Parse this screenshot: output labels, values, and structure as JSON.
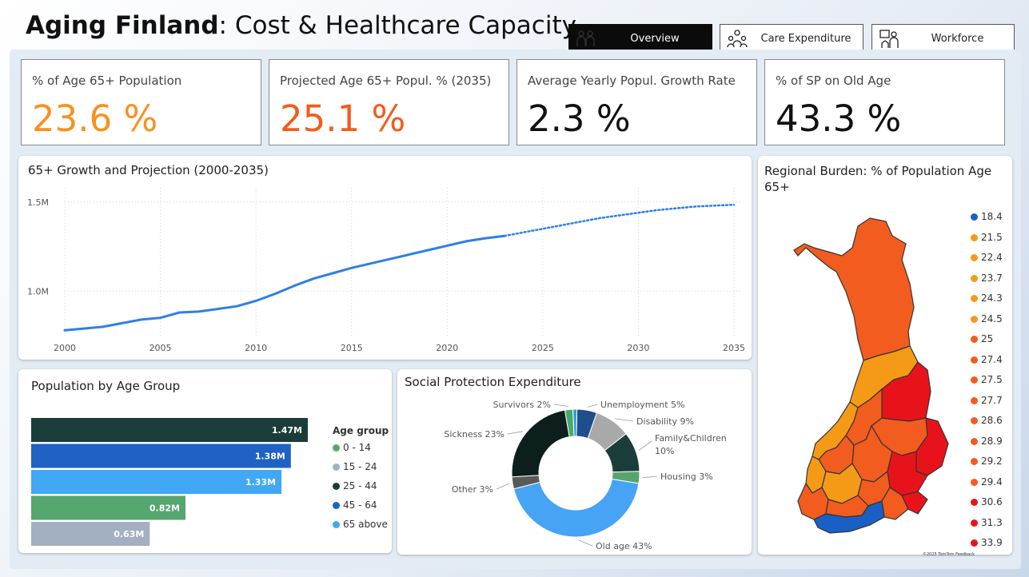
{
  "header": {
    "title_bold": "Aging Finland",
    "title_rest": ": Cost & Healthcare Capacity"
  },
  "tabs": [
    {
      "label": "Overview",
      "icon": "people-icon",
      "active": true
    },
    {
      "label": "Care Expenditure",
      "icon": "care-group-icon",
      "active": false
    },
    {
      "label": "Workforce",
      "icon": "caregiver-icon",
      "active": false
    }
  ],
  "kpis": [
    {
      "label": "% of Age 65+ Population",
      "value": "23.6 %",
      "color": "#f7921e"
    },
    {
      "label": "Projected Age 65+ Popul. % (2035)",
      "value": "25.1 %",
      "color": "#f25c1e"
    },
    {
      "label": "Average Yearly Popul. Growth Rate",
      "value": "2.3 %",
      "color": "#111111"
    },
    {
      "label": "% of SP on Old Age",
      "value": "43.3 %",
      "color": "#111111"
    }
  ],
  "line_panel": {
    "title": "65+ Growth and Projection (2000-2035)"
  },
  "bar_panel": {
    "title": "Population by Age Group",
    "legend_title": "Age group"
  },
  "donut_panel": {
    "title": "Social Protection Expenditure"
  },
  "map_panel": {
    "title": "Regional Burden: % of Population Age 65+",
    "credit": "©2025 TomTom Feedback"
  },
  "chart_data": [
    {
      "type": "line",
      "title": "65+ Growth and Projection (2000-2035)",
      "xlim": [
        2000,
        2035
      ],
      "ylim": [
        0.75,
        1.58
      ],
      "x_ticks": [
        "2000",
        "2005",
        "2010",
        "2015",
        "2020",
        "2025",
        "2030",
        "2035"
      ],
      "y_ticks": [
        {
          "v": 1.0,
          "label": "1.0M"
        },
        {
          "v": 1.5,
          "label": "1.5M"
        }
      ],
      "color": "#2f7fe6",
      "series": [
        {
          "style": "actual",
          "points": [
            [
              2000,
              0.78
            ],
            [
              2001,
              0.79
            ],
            [
              2002,
              0.8
            ],
            [
              2003,
              0.82
            ],
            [
              2004,
              0.84
            ],
            [
              2005,
              0.85
            ],
            [
              2006,
              0.88
            ],
            [
              2007,
              0.885
            ],
            [
              2008,
              0.9
            ],
            [
              2009,
              0.915
            ],
            [
              2010,
              0.945
            ],
            [
              2011,
              0.985
            ],
            [
              2012,
              1.03
            ],
            [
              2013,
              1.07
            ],
            [
              2014,
              1.1
            ],
            [
              2015,
              1.13
            ],
            [
              2016,
              1.155
            ],
            [
              2017,
              1.18
            ],
            [
              2018,
              1.205
            ],
            [
              2019,
              1.23
            ],
            [
              2020,
              1.255
            ],
            [
              2021,
              1.28
            ],
            [
              2022,
              1.297
            ],
            [
              2023,
              1.31
            ]
          ]
        },
        {
          "style": "projection",
          "points": [
            [
              2023,
              1.31
            ],
            [
              2024,
              1.33
            ],
            [
              2025,
              1.35
            ],
            [
              2026,
              1.37
            ],
            [
              2027,
              1.39
            ],
            [
              2028,
              1.41
            ],
            [
              2029,
              1.425
            ],
            [
              2030,
              1.44
            ],
            [
              2031,
              1.455
            ],
            [
              2032,
              1.465
            ],
            [
              2033,
              1.475
            ],
            [
              2034,
              1.48
            ],
            [
              2035,
              1.485
            ]
          ]
        }
      ]
    },
    {
      "type": "bar",
      "title": "Population by Age Group",
      "categories": [
        "25 - 44",
        "45 - 64",
        "65 above",
        "0 - 14",
        "15 - 24"
      ],
      "values": [
        1.47,
        1.38,
        1.33,
        0.82,
        0.63
      ],
      "labels": [
        "1.47M",
        "1.38M",
        "1.33M",
        "0.82M",
        "0.63M"
      ],
      "colors": [
        "#1a3d3a",
        "#1f62c4",
        "#40a8f5",
        "#56a66f",
        "#a3b0c2"
      ],
      "legend": [
        {
          "name": "0 - 14",
          "color": "#56a66f"
        },
        {
          "name": "15 - 24",
          "color": "#a3b0c2"
        },
        {
          "name": "25 - 44",
          "color": "#1a3d3a"
        },
        {
          "name": "45 - 64",
          "color": "#1f62c4"
        },
        {
          "name": "65 above",
          "color": "#40a8f5"
        }
      ]
    },
    {
      "type": "pie",
      "title": "Social Protection Expenditure",
      "slices": [
        {
          "name": "Unemployment",
          "value": 5,
          "label": "Unemployment 5%",
          "color": "#1e4e8c"
        },
        {
          "name": "Disability",
          "value": 9,
          "label": "Disability 9%",
          "color": "#a9a9a9"
        },
        {
          "name": "Family&Children",
          "value": 10,
          "label": "Family&Children 10%",
          "color": "#1a3d3a"
        },
        {
          "name": "Housing",
          "value": 3,
          "label": "Housing 3%",
          "color": "#57a56d"
        },
        {
          "name": "Old age",
          "value": 43,
          "label": "Old age 43%",
          "color": "#47a3f5"
        },
        {
          "name": "Other",
          "value": 3,
          "label": "Other 3%",
          "color": "#595959"
        },
        {
          "name": "Sickness",
          "value": 23,
          "label": "Sickness 23%",
          "color": "#0d1f1c"
        },
        {
          "name": "Survivors",
          "value": 2,
          "label": "Survivors 2%",
          "color": "#4aa86a"
        },
        {
          "name": "Other small",
          "value": 1,
          "label": "",
          "color": "#2f9fd6"
        }
      ]
    },
    {
      "type": "map",
      "title": "Regional Burden: % of Population Age 65+",
      "legend": [
        {
          "value": "18.4",
          "color": "#1a5fc4"
        },
        {
          "value": "21.5",
          "color": "#f59a17"
        },
        {
          "value": "22.4",
          "color": "#f59a17"
        },
        {
          "value": "23.7",
          "color": "#f59a17"
        },
        {
          "value": "24.3",
          "color": "#f59a17"
        },
        {
          "value": "24.5",
          "color": "#f59a17"
        },
        {
          "value": "25",
          "color": "#f25c1e"
        },
        {
          "value": "27.4",
          "color": "#f25c1e"
        },
        {
          "value": "27.5",
          "color": "#f25c1e"
        },
        {
          "value": "27.7",
          "color": "#f25c1e"
        },
        {
          "value": "28.6",
          "color": "#f25c1e"
        },
        {
          "value": "28.9",
          "color": "#f25c1e"
        },
        {
          "value": "29.2",
          "color": "#f25c1e"
        },
        {
          "value": "29.4",
          "color": "#f25c1e"
        },
        {
          "value": "30.6",
          "color": "#e8131a"
        },
        {
          "value": "31.3",
          "color": "#e8131a"
        },
        {
          "value": "33.9",
          "color": "#e8131a"
        }
      ]
    }
  ]
}
